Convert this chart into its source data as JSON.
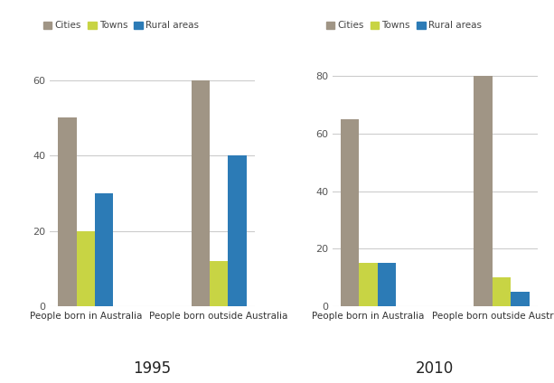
{
  "charts": [
    {
      "title": "1995",
      "ylim": [
        0,
        65
      ],
      "yticks": [
        0,
        20,
        40,
        60
      ],
      "categories": [
        "People born in Australia",
        "People born outside Australia"
      ],
      "series": {
        "Cities": [
          50,
          60
        ],
        "Towns": [
          20,
          12
        ],
        "Rural areas": [
          30,
          40
        ]
      }
    },
    {
      "title": "2010",
      "ylim": [
        0,
        85
      ],
      "yticks": [
        0,
        20,
        40,
        60,
        80
      ],
      "categories": [
        "People born in Australia",
        "People born outside Australia"
      ],
      "series": {
        "Cities": [
          65,
          80
        ],
        "Towns": [
          15,
          10
        ],
        "Rural areas": [
          15,
          5
        ]
      }
    }
  ],
  "series_names": [
    "Cities",
    "Towns",
    "Rural areas"
  ],
  "colors": {
    "Cities": "#a09585",
    "Towns": "#c8d444",
    "Rural areas": "#2c7bb6"
  },
  "bar_width": 0.18,
  "background_color": "#ffffff",
  "legend_fontsize": 7.5,
  "tick_fontsize": 8,
  "label_fontsize": 7.5,
  "title_fontsize": 12
}
